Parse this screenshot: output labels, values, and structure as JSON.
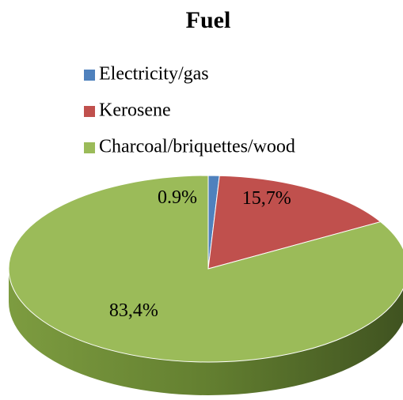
{
  "chart_data": {
    "type": "pie",
    "title": "Fuel",
    "categories": [
      "Electricity/gas",
      "Kerosene",
      "Charcoal/briquettes/wood"
    ],
    "values": [
      0.9,
      15.7,
      83.4
    ],
    "value_labels": [
      "0.9%",
      "15,7%",
      "83,4%"
    ],
    "colors": [
      "#4f81bd",
      "#c0504d",
      "#9bbb59"
    ],
    "legend": "top"
  }
}
